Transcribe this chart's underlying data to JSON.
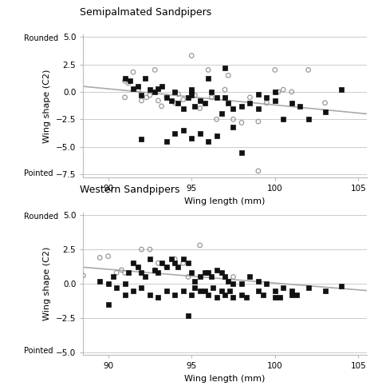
{
  "title1": "Semipalmated Sandpipers",
  "title2": "Western Sandpipers",
  "xlabel": "Wing length (mm)",
  "ylabel": "Wing shape (C2)",
  "xlim": [
    88.5,
    105.5
  ],
  "ylim1": [
    -7.8,
    5.2
  ],
  "ylim2": [
    -5.2,
    5.2
  ],
  "xticks": [
    90,
    95,
    100,
    105
  ],
  "yticks1": [
    5.0,
    2.5,
    0.0,
    -2.5,
    -5.0,
    -7.5
  ],
  "yticks2": [
    5.0,
    2.5,
    0.0,
    -2.5,
    -5.0
  ],
  "ylabel1_rounded": "Rounded",
  "ylabel1_pointed": "Pointed",
  "ylabel2_rounded": "Rounded",
  "ylabel2_pointed": "Pointed",
  "trend_color": "#aaaaaa",
  "dot_color_filled": "#111111",
  "dot_color_open": "#999999",
  "background_color": "#ffffff",
  "grid_color": "#cccccc",
  "semi_open_x": [
    91.0,
    91.2,
    91.5,
    91.8,
    92.0,
    92.3,
    92.5,
    93.0,
    93.2,
    94.0,
    94.5,
    95.0,
    95.5,
    96.0,
    96.5,
    97.0,
    97.5,
    98.0,
    99.0,
    99.5,
    100.0,
    100.5,
    101.0,
    102.0,
    103.0,
    91.0,
    92.8,
    93.5,
    94.2,
    95.2,
    96.2,
    97.2,
    98.5,
    100.2,
    99.0
  ],
  "semi_open_y": [
    1.0,
    0.8,
    1.8,
    0.2,
    -0.8,
    -0.5,
    -0.3,
    -0.8,
    -1.3,
    -1.0,
    -0.7,
    3.3,
    -1.5,
    2.0,
    -2.5,
    0.2,
    -2.5,
    -2.8,
    -2.7,
    -1.0,
    2.0,
    0.2,
    0.0,
    2.0,
    -1.0,
    -0.5,
    2.0,
    -0.5,
    -0.2,
    -0.3,
    -0.5,
    1.5,
    -0.5,
    0.0,
    -7.2
  ],
  "semi_filled_x": [
    91.0,
    91.3,
    91.5,
    91.8,
    92.0,
    92.2,
    92.5,
    92.8,
    93.0,
    93.2,
    93.5,
    93.8,
    94.0,
    94.2,
    94.5,
    94.8,
    95.0,
    95.0,
    95.0,
    95.2,
    95.5,
    95.8,
    96.0,
    96.2,
    96.5,
    96.8,
    97.0,
    97.2,
    97.5,
    98.0,
    98.5,
    99.0,
    99.5,
    100.0,
    100.5,
    101.0,
    102.0,
    103.0,
    104.0,
    93.5,
    94.0,
    94.5,
    95.0,
    95.5,
    96.0,
    96.5,
    92.0,
    97.0,
    97.5,
    98.0,
    99.0,
    100.0,
    101.5
  ],
  "semi_filled_y": [
    1.2,
    1.0,
    0.3,
    0.5,
    -0.3,
    1.2,
    0.2,
    0.0,
    0.3,
    0.5,
    -0.5,
    -0.8,
    0.0,
    -1.0,
    -1.5,
    -0.5,
    0.2,
    0.0,
    -0.3,
    -1.3,
    -0.8,
    -1.0,
    1.2,
    0.0,
    -0.5,
    -2.0,
    -0.5,
    -1.0,
    -1.5,
    -1.3,
    -1.0,
    -1.5,
    -0.5,
    -0.8,
    -2.5,
    -1.0,
    -2.5,
    -1.8,
    0.2,
    -4.5,
    -3.8,
    -3.5,
    -4.2,
    -3.8,
    -4.5,
    -4.0,
    -4.3,
    2.2,
    -3.2,
    -5.5,
    -0.2,
    0.0,
    -1.3
  ],
  "semi_trend_x": [
    88.5,
    105.5
  ],
  "semi_trend_y": [
    0.5,
    -2.0
  ],
  "west_open_x": [
    88.5,
    89.5,
    90.0,
    90.5,
    91.0,
    91.5,
    92.0,
    92.5,
    93.0,
    93.5,
    94.0,
    94.5,
    95.5,
    96.0,
    97.5,
    90.8,
    91.8,
    92.8,
    94.8
  ],
  "west_open_y": [
    0.6,
    1.9,
    2.0,
    0.8,
    0.8,
    1.5,
    2.5,
    2.5,
    1.5,
    1.2,
    1.8,
    1.5,
    2.8,
    0.8,
    0.5,
    1.0,
    1.2,
    1.0,
    0.5
  ],
  "west_filled_x": [
    89.5,
    90.0,
    90.3,
    90.5,
    91.0,
    91.2,
    91.5,
    91.8,
    92.0,
    92.2,
    92.5,
    92.8,
    93.0,
    93.2,
    93.5,
    93.8,
    94.0,
    94.2,
    94.5,
    94.8,
    95.0,
    95.2,
    95.5,
    95.8,
    96.0,
    96.2,
    96.5,
    96.8,
    97.0,
    97.2,
    97.5,
    98.0,
    98.5,
    99.0,
    99.5,
    100.0,
    100.5,
    101.0,
    102.0,
    103.0,
    104.0,
    91.0,
    91.5,
    92.0,
    92.5,
    93.0,
    93.5,
    94.0,
    94.5,
    95.0,
    95.5,
    96.0,
    96.5,
    97.0,
    97.5,
    98.0,
    99.0,
    100.0,
    101.0,
    90.0,
    94.8,
    95.2,
    95.8,
    96.3,
    96.8,
    97.3,
    98.3,
    99.3,
    100.3,
    101.3
  ],
  "west_filled_y": [
    0.2,
    0.0,
    0.5,
    -0.3,
    0.0,
    0.8,
    1.5,
    1.2,
    0.8,
    0.5,
    1.8,
    1.0,
    0.8,
    1.5,
    1.2,
    1.8,
    1.5,
    1.2,
    1.8,
    1.5,
    0.8,
    0.2,
    0.5,
    0.8,
    0.8,
    0.5,
    1.0,
    0.8,
    0.5,
    0.2,
    0.0,
    0.0,
    0.5,
    0.2,
    0.0,
    -0.5,
    -0.3,
    -0.5,
    -0.3,
    -0.5,
    -0.2,
    -0.8,
    -0.5,
    -0.3,
    -0.8,
    -1.0,
    -0.5,
    -0.8,
    -0.5,
    -0.8,
    -0.5,
    -0.8,
    -1.0,
    -0.8,
    -1.0,
    -0.8,
    -0.5,
    -1.0,
    -0.8,
    -1.5,
    -2.3,
    -0.3,
    -0.5,
    -0.3,
    -0.5,
    -0.5,
    -1.0,
    -0.8,
    -1.0,
    -0.8
  ],
  "west_trend_x": [
    88.5,
    105.5
  ],
  "west_trend_y": [
    1.2,
    -0.5
  ]
}
